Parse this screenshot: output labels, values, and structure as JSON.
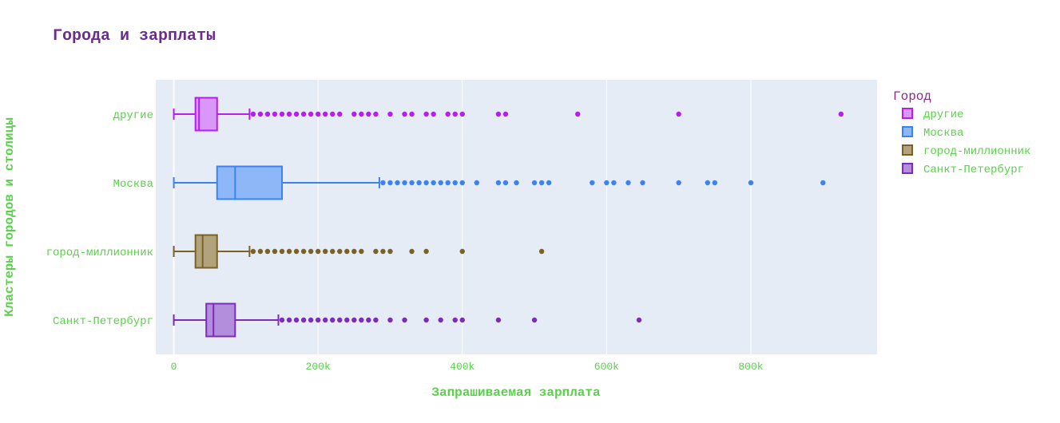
{
  "chart_data": {
    "type": "box",
    "orientation": "horizontal",
    "title": "Города и зарплаты",
    "xlabel": "Запрашиваемая зарплата",
    "ylabel": "Кластеры городов и столицы",
    "xlim": [
      -25000,
      975000
    ],
    "x_ticks": [
      0,
      200000,
      400000,
      600000,
      800000
    ],
    "x_tick_labels": [
      "0",
      "200k",
      "400k",
      "600k",
      "800k"
    ],
    "grid": true,
    "legend": {
      "title": "Город",
      "position": "right"
    },
    "colors": {
      "title": "#6a2c91",
      "axis_text": "#5ad14a",
      "plot_bg": "#e5ecf6",
      "legend_title": "#8a2a8a",
      "legend_text": "#5ad14a"
    },
    "series": [
      {
        "name": "другие",
        "color": "#b61ef0",
        "fill": "#d998f7",
        "min": 0,
        "q1": 30000,
        "median": 35000,
        "q3": 60000,
        "upper_fence": 105000,
        "outliers": [
          110000,
          120000,
          130000,
          140000,
          150000,
          160000,
          170000,
          180000,
          190000,
          200000,
          210000,
          220000,
          230000,
          250000,
          260000,
          270000,
          280000,
          300000,
          320000,
          330000,
          350000,
          360000,
          380000,
          390000,
          400000,
          450000,
          460000,
          560000,
          700000,
          925000
        ]
      },
      {
        "name": "Москва",
        "color": "#3b83f0",
        "fill": "#8eb7f8",
        "min": 0,
        "q1": 60000,
        "median": 85000,
        "q3": 150000,
        "upper_fence": 285000,
        "outliers": [
          290000,
          300000,
          310000,
          320000,
          330000,
          340000,
          350000,
          360000,
          370000,
          380000,
          390000,
          400000,
          420000,
          450000,
          460000,
          475000,
          500000,
          510000,
          520000,
          580000,
          600000,
          610000,
          630000,
          650000,
          700000,
          740000,
          750000,
          800000,
          900000
        ]
      },
      {
        "name": "город-миллионник",
        "color": "#7a6124",
        "fill": "#b3a37c",
        "min": 0,
        "q1": 30000,
        "median": 40000,
        "q3": 60000,
        "upper_fence": 105000,
        "outliers": [
          110000,
          120000,
          130000,
          140000,
          150000,
          160000,
          170000,
          180000,
          190000,
          200000,
          210000,
          220000,
          230000,
          240000,
          250000,
          260000,
          280000,
          290000,
          300000,
          330000,
          350000,
          400000,
          510000
        ]
      },
      {
        "name": "Санкт-Петербург",
        "color": "#7d2bbd",
        "fill": "#b28edc",
        "min": 0,
        "q1": 45000,
        "median": 55000,
        "q3": 85000,
        "upper_fence": 145000,
        "outliers": [
          150000,
          160000,
          170000,
          180000,
          190000,
          200000,
          210000,
          220000,
          230000,
          240000,
          250000,
          260000,
          270000,
          280000,
          300000,
          320000,
          350000,
          370000,
          390000,
          400000,
          450000,
          500000,
          645000
        ]
      }
    ]
  }
}
